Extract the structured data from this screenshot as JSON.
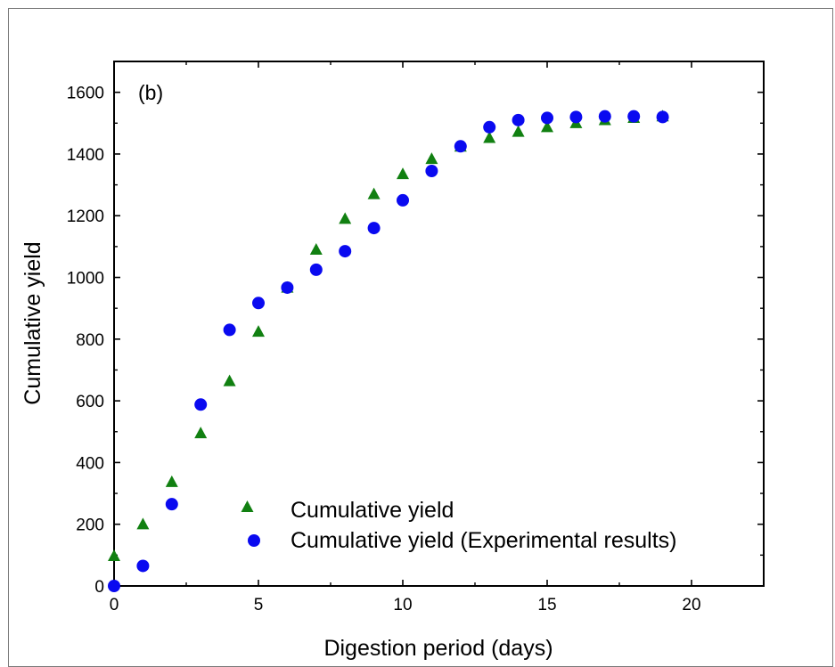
{
  "chart_data": {
    "type": "scatter",
    "panel_label": "(b)",
    "xlabel": "Digestion period (days)",
    "ylabel": "Cumulative yield",
    "xlim": [
      0,
      22.5
    ],
    "ylim": [
      0,
      1700
    ],
    "x_ticks": [
      0,
      5,
      10,
      15,
      20
    ],
    "y_ticks": [
      0,
      200,
      400,
      600,
      800,
      1000,
      1200,
      1400,
      1600
    ],
    "x_minor_step": 2.5,
    "y_minor_step": 100,
    "grid": false,
    "legend_position": "bottom-center",
    "series": [
      {
        "name": "Cumulative yield",
        "marker": "triangle",
        "color": "#118011",
        "x": [
          0,
          1,
          2,
          3,
          4,
          5,
          6,
          7,
          8,
          9,
          10,
          11,
          12,
          13,
          14,
          15,
          16,
          17,
          18,
          19
        ],
        "y": [
          95,
          198,
          335,
          493,
          662,
          822,
          965,
          1088,
          1188,
          1268,
          1333,
          1382,
          1422,
          1450,
          1470,
          1485,
          1498,
          1508,
          1515,
          1520
        ]
      },
      {
        "name": "Cumulative yield (Experimental results)",
        "marker": "circle",
        "color": "#0a0af0",
        "x": [
          0,
          1,
          2,
          3,
          4,
          5,
          6,
          7,
          8,
          9,
          10,
          11,
          12,
          13,
          14,
          15,
          16,
          17,
          18,
          19
        ],
        "y": [
          0,
          65,
          265,
          588,
          830,
          917,
          967,
          1025,
          1085,
          1160,
          1250,
          1345,
          1425,
          1487,
          1510,
          1517,
          1520,
          1522,
          1522,
          1520
        ]
      }
    ]
  }
}
